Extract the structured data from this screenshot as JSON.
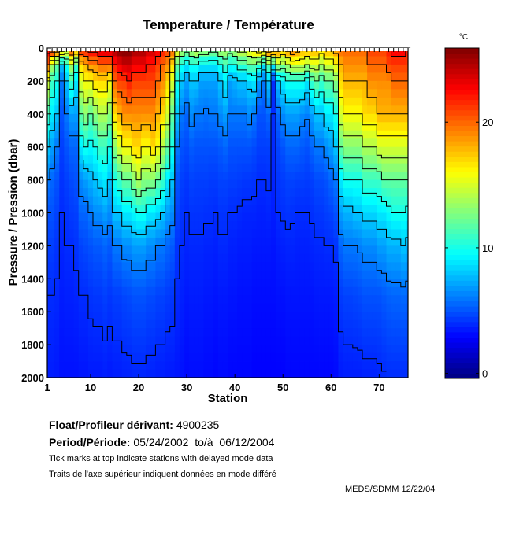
{
  "chart_data": {
    "type": "heatmap",
    "title": "Temperature / Température",
    "xlabel": "Station",
    "ylabel": "Pressure / Pression (dbar)",
    "xlim": [
      1,
      76
    ],
    "ylim": [
      2000,
      0
    ],
    "x_ticks": [
      1,
      10,
      20,
      30,
      40,
      50,
      60,
      70
    ],
    "y_ticks": [
      0,
      200,
      400,
      600,
      800,
      1000,
      1200,
      1400,
      1600,
      1800,
      2000
    ],
    "colorbar": {
      "label": "°C",
      "range": [
        -0.4,
        25.9
      ],
      "ticks": [
        0,
        10,
        20
      ],
      "colormap": "jet"
    },
    "contour_levels": [
      4,
      6,
      8,
      10,
      12,
      14,
      16,
      18,
      20,
      22
    ],
    "pressure_levels": [
      0,
      100,
      200,
      400,
      600,
      800,
      1000,
      1200,
      1500,
      2000
    ],
    "stations": [
      1,
      2,
      3,
      4,
      5,
      6,
      7,
      8,
      9,
      10,
      11,
      12,
      13,
      14,
      15,
      16,
      17,
      18,
      19,
      20,
      21,
      22,
      23,
      24,
      25,
      26,
      27,
      28,
      29,
      30,
      31,
      32,
      33,
      34,
      35,
      36,
      37,
      38,
      39,
      40,
      41,
      42,
      43,
      44,
      45,
      46,
      47,
      48,
      49,
      50,
      51,
      52,
      53,
      54,
      55,
      56,
      57,
      58,
      59,
      60,
      61,
      62,
      63,
      64,
      65,
      66,
      67,
      68,
      69,
      70,
      71,
      72,
      73,
      74,
      75,
      76
    ],
    "temperature": [
      [
        23,
        20,
        15,
        11,
        8,
        6,
        5,
        4.5,
        4,
        3.6
      ],
      [
        22,
        14,
        11,
        9,
        7,
        5.5,
        5,
        4.5,
        4,
        3.6
      ],
      [
        20,
        12,
        10,
        8,
        6,
        5,
        4.6,
        4.2,
        3.9,
        3.5
      ],
      [
        18,
        8,
        6,
        5,
        4.5,
        4.2,
        4,
        3.8,
        3.6,
        3.3
      ],
      [
        16,
        10,
        8,
        6,
        5,
        4.5,
        4.2,
        4,
        3.7,
        3.3
      ],
      [
        21,
        14,
        11,
        7,
        5.5,
        4.8,
        4.4,
        4,
        3.7,
        3.3
      ],
      [
        19,
        11,
        9,
        7,
        5.5,
        5,
        4.5,
        4.2,
        3.8,
        3.3
      ],
      [
        22,
        17,
        15,
        12,
        9,
        6.5,
        5.5,
        4.6,
        4,
        3.4
      ],
      [
        22,
        18,
        16,
        13,
        10,
        7,
        5.5,
        4.8,
        4,
        3.4
      ],
      [
        23,
        19,
        16,
        12,
        9.5,
        7.5,
        6,
        5,
        4.2,
        3.5
      ],
      [
        23,
        19,
        17,
        13,
        10,
        8,
        6.5,
        5.2,
        4.3,
        3.5
      ],
      [
        24,
        20,
        17,
        14,
        11,
        8.5,
        6.5,
        5.2,
        4.3,
        3.5
      ],
      [
        24,
        20,
        17,
        14,
        11,
        9,
        7,
        5.5,
        4.5,
        3.6
      ],
      [
        24,
        20,
        16,
        13,
        10,
        8,
        6.5,
        5.2,
        4.3,
        3.5
      ],
      [
        25,
        22,
        20,
        17,
        13,
        10,
        8,
        6,
        4.5,
        3.6
      ],
      [
        26,
        23,
        21,
        18,
        15,
        11,
        8,
        6,
        4.5,
        3.6
      ],
      [
        26,
        24,
        21,
        19,
        16,
        12,
        9,
        6.5,
        4.7,
        3.7
      ],
      [
        26,
        24,
        22,
        19,
        16,
        12,
        9,
        6.5,
        4.8,
        3.7
      ],
      [
        25,
        23,
        21,
        19,
        17,
        13,
        9.5,
        7,
        5,
        3.8
      ],
      [
        25,
        23,
        21,
        19,
        17,
        14,
        10,
        7,
        5,
        3.8
      ],
      [
        25,
        23,
        21,
        19,
        16,
        13,
        10,
        7,
        5,
        3.8
      ],
      [
        24,
        22,
        21,
        19,
        16,
        13,
        9,
        6.5,
        4.8,
        3.7
      ],
      [
        24,
        22,
        21,
        19,
        17,
        13,
        9,
        6.5,
        4.8,
        3.7
      ],
      [
        23,
        21,
        20,
        18,
        16,
        12,
        8.5,
        6,
        4.6,
        3.6
      ],
      [
        22,
        20,
        19,
        17,
        14,
        11,
        8,
        6,
        4.6,
        3.6
      ],
      [
        21,
        19,
        17,
        15,
        12,
        9,
        7,
        5.5,
        4.4,
        3.5
      ],
      [
        20,
        17,
        15,
        12,
        10,
        8,
        6.5,
        5.2,
        4.3,
        3.5
      ],
      [
        16,
        12,
        10,
        8,
        6,
        5,
        4.6,
        4.2,
        3.9,
        3.4
      ],
      [
        14,
        10,
        8,
        6,
        5,
        4.5,
        4.2,
        4,
        3.7,
        3.3
      ],
      [
        13,
        9,
        7,
        5.5,
        4.8,
        4.3,
        4,
        3.8,
        3.5,
        3.1
      ],
      [
        14,
        10,
        8,
        6.5,
        5.2,
        4.6,
        4.2,
        3.9,
        3.6,
        3.2
      ],
      [
        15,
        10,
        8,
        6,
        5,
        4.5,
        4.2,
        3.9,
        3.6,
        3.2
      ],
      [
        14,
        9,
        7,
        6,
        5,
        4.5,
        4.2,
        3.9,
        3.6,
        3.2
      ],
      [
        14,
        9,
        7,
        5.8,
        5,
        4.5,
        4.1,
        3.8,
        3.5,
        3.1
      ],
      [
        13,
        9,
        7,
        6,
        5,
        4.4,
        4.1,
        3.8,
        3.5,
        3.1
      ],
      [
        13,
        9,
        7,
        6,
        5,
        4.4,
        4,
        3.7,
        3.4,
        3.0
      ],
      [
        14,
        10,
        8,
        6.5,
        5.2,
        4.6,
        4.2,
        3.9,
        3.5,
        3.1
      ],
      [
        14,
        11,
        9,
        7,
        5.5,
        4.6,
        4.2,
        3.9,
        3.5,
        3.1
      ],
      [
        13,
        10,
        7,
        6,
        5,
        4.5,
        4,
        3.7,
        3.4,
        3.0
      ],
      [
        14,
        10,
        7.5,
        6,
        5,
        4.5,
        4,
        3.7,
        3.4,
        3.0
      ],
      [
        15,
        11,
        8,
        6,
        5,
        4.4,
        3.9,
        3.6,
        3.3,
        3.0
      ],
      [
        15,
        11,
        8,
        6,
        5,
        4.3,
        3.8,
        3.6,
        3.3,
        3.0
      ],
      [
        16,
        12,
        8.5,
        6.5,
        5,
        4.3,
        3.8,
        3.6,
        3.3,
        3.0
      ],
      [
        17,
        12,
        9,
        6,
        4.8,
        4.2,
        3.8,
        3.5,
        3.2,
        2.9
      ],
      [
        18,
        11,
        7,
        5,
        4.5,
        4,
        3.7,
        3.5,
        3.2,
        2.9
      ],
      [
        18,
        9,
        6,
        5,
        4.5,
        4,
        3.7,
        3.5,
        3.2,
        2.9
      ],
      [
        20,
        12,
        8,
        5.5,
        4.5,
        4.1,
        3.8,
        3.5,
        3.2,
        2.9
      ],
      [
        20,
        10,
        4,
        4,
        3.9,
        3.8,
        3.6,
        3.4,
        3.2,
        2.9
      ],
      [
        19,
        14,
        8,
        5.5,
        4.6,
        4.2,
        4,
        3.6,
        3.3,
        2.9
      ],
      [
        18,
        13,
        9,
        6.5,
        5,
        4.4,
        4.1,
        3.7,
        3.3,
        2.9
      ],
      [
        19,
        14,
        10,
        7,
        5.5,
        4.6,
        4.2,
        3.8,
        3.4,
        3.0
      ],
      [
        20,
        15,
        10,
        7,
        5.5,
        4.6,
        4.1,
        3.8,
        3.4,
        3.0
      ],
      [
        19,
        15,
        10,
        7,
        5.5,
        4.5,
        4,
        3.7,
        3.4,
        3.0
      ],
      [
        18,
        15,
        10,
        6.5,
        5.2,
        4.5,
        4,
        3.7,
        3.4,
        3.0
      ],
      [
        18,
        14,
        9,
        6.2,
        5,
        4.4,
        4,
        3.7,
        3.4,
        3.0
      ],
      [
        18,
        15,
        11,
        7,
        5.5,
        4.5,
        4.1,
        3.8,
        3.4,
        3.0
      ],
      [
        18,
        15,
        12,
        8,
        6,
        4.8,
        4.3,
        3.9,
        3.5,
        3.0
      ],
      [
        17,
        14,
        11,
        8,
        6,
        4.8,
        4.3,
        3.9,
        3.5,
        3.0
      ],
      [
        18,
        15,
        12,
        9,
        6.5,
        5,
        4.5,
        4,
        3.5,
        3.0
      ],
      [
        18,
        15,
        12,
        9,
        7,
        5.5,
        4.6,
        4,
        3.5,
        3.0
      ],
      [
        19,
        16,
        13,
        10,
        8,
        6,
        5,
        4.2,
        3.6,
        3.1
      ],
      [
        20,
        18,
        17,
        15,
        12,
        9,
        7,
        5.5,
        4.4,
        3.5
      ],
      [
        20,
        19,
        18,
        16,
        13,
        10,
        7.5,
        6,
        4.6,
        3.6
      ],
      [
        20,
        19,
        18,
        16,
        13,
        10,
        7.5,
        6,
        4.6,
        3.6
      ],
      [
        20,
        19,
        18,
        16,
        13,
        10,
        8,
        6,
        4.7,
        3.6
      ],
      [
        20,
        19,
        18,
        16,
        13,
        10,
        8,
        6.2,
        4.8,
        3.6
      ],
      [
        20,
        19,
        18,
        17,
        14,
        11,
        8.5,
        6.5,
        5,
        3.7
      ],
      [
        21,
        20,
        19,
        17,
        14,
        11,
        8.5,
        6.5,
        5,
        3.7
      ],
      [
        21,
        20,
        19,
        17,
        14,
        11,
        8.5,
        6.5,
        5,
        3.7
      ],
      [
        21,
        20,
        19,
        18,
        15,
        11,
        9,
        7,
        5,
        3.8
      ],
      [
        21,
        20,
        19,
        18,
        15,
        12,
        9,
        7,
        5.2,
        3.9
      ],
      [
        22,
        21,
        19,
        18,
        15,
        12,
        9.5,
        7.5,
        5.4,
        4.0
      ],
      [
        23,
        21,
        20,
        18,
        15,
        12,
        10,
        7.5,
        5.5,
        4.0
      ],
      [
        23,
        21,
        20,
        18,
        15,
        12,
        10,
        7.5,
        5.5,
        4.0
      ],
      [
        23,
        21,
        20,
        18,
        15,
        12,
        10,
        8,
        5.6,
        4.0
      ],
      [
        22,
        21,
        20,
        18,
        15,
        12,
        9.5,
        7.5,
        5.4,
        4.0
      ]
    ]
  },
  "info": {
    "float_label": "Float/Profileur dérivant:",
    "float_value": "4900235",
    "period_label": "Period/Période:",
    "period_start": "05/24/2002",
    "period_sep": "to/à",
    "period_end": "06/12/2004",
    "note_en": "Tick marks at top indicate stations with delayed mode data",
    "note_fr": "Traits de l'axe supérieur indiquent données en mode différé",
    "credit": "MEDS/SDMM  12/22/04"
  }
}
